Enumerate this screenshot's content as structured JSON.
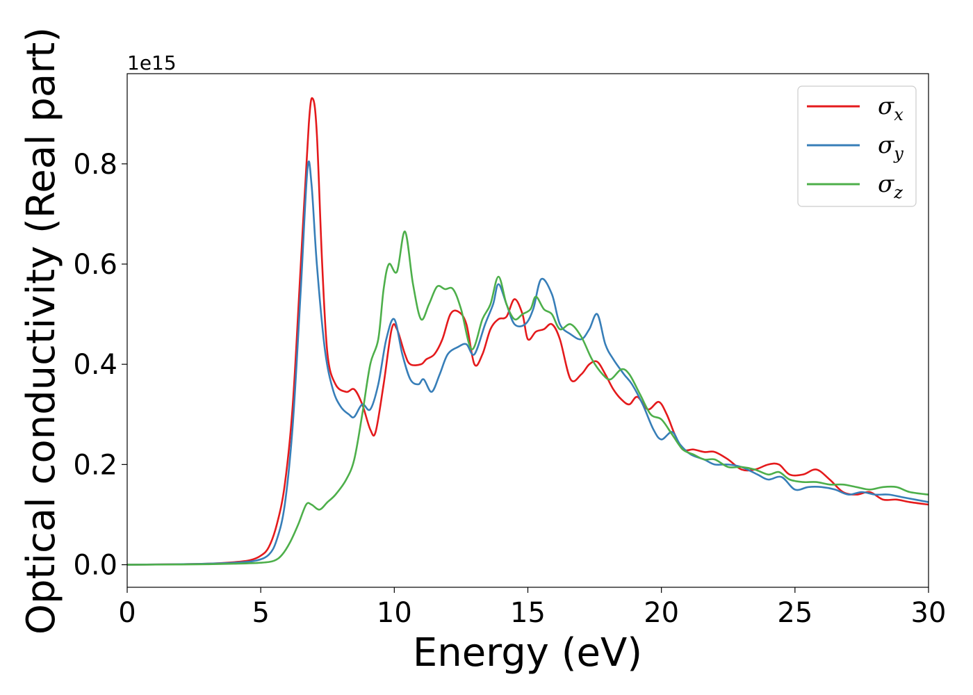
{
  "chart_data": {
    "type": "line",
    "xlabel": "Energy (eV)",
    "ylabel": "Optical conductivity (Real part)",
    "y_offset_label": "1e15",
    "xlim": [
      0,
      30
    ],
    "ylim": [
      -0.045,
      0.98
    ],
    "xticks": [
      0,
      5,
      10,
      15,
      20,
      25,
      30
    ],
    "xtick_labels": [
      "0",
      "5",
      "10",
      "15",
      "20",
      "25",
      "30"
    ],
    "yticks": [
      0.0,
      0.2,
      0.4,
      0.6,
      0.8
    ],
    "ytick_labels": [
      "0.0",
      "0.2",
      "0.4",
      "0.6",
      "0.8"
    ],
    "grid": false,
    "legend_position": "top-right",
    "series": [
      {
        "name": "σx",
        "symbol": "σ",
        "subscript": "x",
        "color": "#e41a1c",
        "points": [
          [
            0,
            0
          ],
          [
            2,
            0.001
          ],
          [
            3,
            0.002
          ],
          [
            4,
            0.005
          ],
          [
            4.6,
            0.009
          ],
          [
            5,
            0.018
          ],
          [
            5.3,
            0.035
          ],
          [
            5.6,
            0.08
          ],
          [
            5.9,
            0.16
          ],
          [
            6.2,
            0.32
          ],
          [
            6.5,
            0.6
          ],
          [
            6.8,
            0.88
          ],
          [
            6.95,
            0.93
          ],
          [
            7.1,
            0.86
          ],
          [
            7.3,
            0.6
          ],
          [
            7.5,
            0.42
          ],
          [
            7.8,
            0.36
          ],
          [
            8.2,
            0.345
          ],
          [
            8.5,
            0.35
          ],
          [
            8.8,
            0.32
          ],
          [
            9.1,
            0.27
          ],
          [
            9.3,
            0.265
          ],
          [
            9.6,
            0.36
          ],
          [
            9.9,
            0.47
          ],
          [
            10.1,
            0.47
          ],
          [
            10.4,
            0.42
          ],
          [
            10.6,
            0.4
          ],
          [
            11,
            0.4
          ],
          [
            11.2,
            0.41
          ],
          [
            11.5,
            0.42
          ],
          [
            11.8,
            0.45
          ],
          [
            12.1,
            0.5
          ],
          [
            12.4,
            0.505
          ],
          [
            12.7,
            0.48
          ],
          [
            13,
            0.4
          ],
          [
            13.3,
            0.42
          ],
          [
            13.6,
            0.47
          ],
          [
            13.9,
            0.49
          ],
          [
            14.2,
            0.495
          ],
          [
            14.5,
            0.53
          ],
          [
            14.8,
            0.5
          ],
          [
            15,
            0.45
          ],
          [
            15.3,
            0.465
          ],
          [
            15.6,
            0.47
          ],
          [
            15.9,
            0.48
          ],
          [
            16.2,
            0.45
          ],
          [
            16.6,
            0.37
          ],
          [
            17,
            0.38
          ],
          [
            17.3,
            0.4
          ],
          [
            17.6,
            0.405
          ],
          [
            17.9,
            0.38
          ],
          [
            18.2,
            0.35
          ],
          [
            18.5,
            0.33
          ],
          [
            18.8,
            0.32
          ],
          [
            19.1,
            0.335
          ],
          [
            19.5,
            0.31
          ],
          [
            19.9,
            0.325
          ],
          [
            20.2,
            0.3
          ],
          [
            20.5,
            0.26
          ],
          [
            20.8,
            0.23
          ],
          [
            21.2,
            0.23
          ],
          [
            21.6,
            0.225
          ],
          [
            22,
            0.225
          ],
          [
            22.5,
            0.21
          ],
          [
            23,
            0.19
          ],
          [
            23.5,
            0.19
          ],
          [
            24,
            0.2
          ],
          [
            24.4,
            0.2
          ],
          [
            24.8,
            0.18
          ],
          [
            25.3,
            0.18
          ],
          [
            25.8,
            0.19
          ],
          [
            26.3,
            0.17
          ],
          [
            26.8,
            0.145
          ],
          [
            27.3,
            0.14
          ],
          [
            27.8,
            0.145
          ],
          [
            28.3,
            0.13
          ],
          [
            28.8,
            0.13
          ],
          [
            29.3,
            0.125
          ],
          [
            30,
            0.12
          ]
        ]
      },
      {
        "name": "σy",
        "symbol": "σ",
        "subscript": "y",
        "color": "#377eb8",
        "points": [
          [
            0,
            0
          ],
          [
            2,
            0.001
          ],
          [
            3,
            0.002
          ],
          [
            4,
            0.004
          ],
          [
            4.8,
            0.008
          ],
          [
            5.3,
            0.02
          ],
          [
            5.6,
            0.05
          ],
          [
            5.9,
            0.12
          ],
          [
            6.2,
            0.28
          ],
          [
            6.5,
            0.55
          ],
          [
            6.75,
            0.79
          ],
          [
            6.9,
            0.76
          ],
          [
            7.1,
            0.6
          ],
          [
            7.4,
            0.43
          ],
          [
            7.7,
            0.35
          ],
          [
            8,
            0.315
          ],
          [
            8.3,
            0.3
          ],
          [
            8.5,
            0.295
          ],
          [
            8.8,
            0.32
          ],
          [
            9.1,
            0.31
          ],
          [
            9.4,
            0.36
          ],
          [
            9.7,
            0.45
          ],
          [
            10,
            0.49
          ],
          [
            10.3,
            0.42
          ],
          [
            10.6,
            0.37
          ],
          [
            10.9,
            0.36
          ],
          [
            11.1,
            0.37
          ],
          [
            11.4,
            0.345
          ],
          [
            11.7,
            0.38
          ],
          [
            12,
            0.42
          ],
          [
            12.4,
            0.435
          ],
          [
            12.7,
            0.44
          ],
          [
            13,
            0.42
          ],
          [
            13.4,
            0.48
          ],
          [
            13.7,
            0.52
          ],
          [
            13.9,
            0.56
          ],
          [
            14.2,
            0.52
          ],
          [
            14.5,
            0.48
          ],
          [
            14.9,
            0.48
          ],
          [
            15.2,
            0.51
          ],
          [
            15.5,
            0.57
          ],
          [
            15.9,
            0.54
          ],
          [
            16.2,
            0.48
          ],
          [
            16.6,
            0.46
          ],
          [
            17,
            0.45
          ],
          [
            17.3,
            0.47
          ],
          [
            17.6,
            0.5
          ],
          [
            17.9,
            0.44
          ],
          [
            18.2,
            0.41
          ],
          [
            18.6,
            0.38
          ],
          [
            18.9,
            0.36
          ],
          [
            19.3,
            0.32
          ],
          [
            19.7,
            0.27
          ],
          [
            20,
            0.25
          ],
          [
            20.4,
            0.265
          ],
          [
            20.7,
            0.24
          ],
          [
            21.1,
            0.22
          ],
          [
            21.6,
            0.21
          ],
          [
            22,
            0.2
          ],
          [
            22.5,
            0.2
          ],
          [
            23,
            0.195
          ],
          [
            23.6,
            0.18
          ],
          [
            24,
            0.17
          ],
          [
            24.5,
            0.175
          ],
          [
            25,
            0.15
          ],
          [
            25.5,
            0.155
          ],
          [
            26,
            0.155
          ],
          [
            26.5,
            0.15
          ],
          [
            27,
            0.14
          ],
          [
            27.5,
            0.145
          ],
          [
            28,
            0.14
          ],
          [
            28.5,
            0.14
          ],
          [
            29,
            0.135
          ],
          [
            29.5,
            0.13
          ],
          [
            30,
            0.125
          ]
        ]
      },
      {
        "name": "σz",
        "symbol": "σ",
        "subscript": "z",
        "color": "#4daf4a",
        "points": [
          [
            0,
            0
          ],
          [
            2,
            0.0005
          ],
          [
            3,
            0.001
          ],
          [
            4,
            0.002
          ],
          [
            5,
            0.004
          ],
          [
            5.5,
            0.008
          ],
          [
            5.8,
            0.02
          ],
          [
            6.1,
            0.045
          ],
          [
            6.4,
            0.08
          ],
          [
            6.7,
            0.12
          ],
          [
            6.9,
            0.12
          ],
          [
            7.2,
            0.11
          ],
          [
            7.5,
            0.125
          ],
          [
            7.8,
            0.14
          ],
          [
            8.2,
            0.17
          ],
          [
            8.5,
            0.21
          ],
          [
            8.8,
            0.3
          ],
          [
            9.1,
            0.4
          ],
          [
            9.4,
            0.45
          ],
          [
            9.6,
            0.55
          ],
          [
            9.8,
            0.6
          ],
          [
            10.1,
            0.585
          ],
          [
            10.4,
            0.665
          ],
          [
            10.7,
            0.56
          ],
          [
            11,
            0.49
          ],
          [
            11.3,
            0.52
          ],
          [
            11.6,
            0.555
          ],
          [
            11.9,
            0.55
          ],
          [
            12.2,
            0.55
          ],
          [
            12.5,
            0.51
          ],
          [
            12.9,
            0.43
          ],
          [
            13.3,
            0.49
          ],
          [
            13.6,
            0.52
          ],
          [
            13.9,
            0.575
          ],
          [
            14.2,
            0.52
          ],
          [
            14.5,
            0.49
          ],
          [
            14.8,
            0.5
          ],
          [
            15.1,
            0.51
          ],
          [
            15.3,
            0.535
          ],
          [
            15.6,
            0.51
          ],
          [
            15.9,
            0.5
          ],
          [
            16.2,
            0.47
          ],
          [
            16.6,
            0.48
          ],
          [
            17,
            0.455
          ],
          [
            17.4,
            0.41
          ],
          [
            17.8,
            0.38
          ],
          [
            18.1,
            0.37
          ],
          [
            18.5,
            0.39
          ],
          [
            18.8,
            0.38
          ],
          [
            19.2,
            0.34
          ],
          [
            19.6,
            0.3
          ],
          [
            20,
            0.29
          ],
          [
            20.4,
            0.26
          ],
          [
            20.8,
            0.23
          ],
          [
            21.2,
            0.22
          ],
          [
            21.6,
            0.21
          ],
          [
            22,
            0.21
          ],
          [
            22.5,
            0.195
          ],
          [
            23,
            0.195
          ],
          [
            23.5,
            0.19
          ],
          [
            24,
            0.18
          ],
          [
            24.4,
            0.185
          ],
          [
            24.8,
            0.17
          ],
          [
            25.3,
            0.165
          ],
          [
            25.8,
            0.165
          ],
          [
            26.3,
            0.16
          ],
          [
            26.8,
            0.16
          ],
          [
            27.3,
            0.155
          ],
          [
            27.8,
            0.15
          ],
          [
            28.3,
            0.155
          ],
          [
            28.8,
            0.155
          ],
          [
            29.3,
            0.145
          ],
          [
            30,
            0.14
          ]
        ]
      }
    ]
  }
}
